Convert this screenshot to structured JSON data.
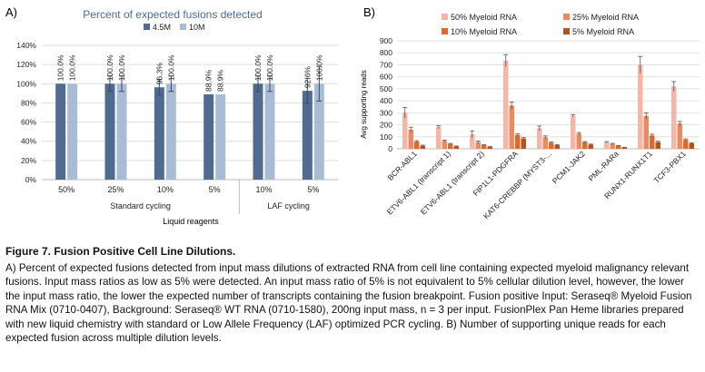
{
  "panels": {
    "a_label": "A)",
    "b_label": "B)"
  },
  "chart_data": [
    {
      "type": "bar",
      "title": "Percent of expected fusions detected",
      "xlabel": "Liquid reagents",
      "ylabel": "",
      "ylim": [
        0,
        140
      ],
      "yticks": [
        "0%",
        "20%",
        "40%",
        "60%",
        "80%",
        "100%",
        "120%",
        "140%"
      ],
      "categories": [
        "50%",
        "25%",
        "10%",
        "5%",
        "10%",
        "5%"
      ],
      "groups": [
        {
          "label": "Standard cycling",
          "categories": [
            "50%",
            "25%",
            "10%",
            "5%"
          ]
        },
        {
          "label": "LAF cycling",
          "categories": [
            "10%",
            "5%"
          ]
        }
      ],
      "series": [
        {
          "name": "4.5M",
          "color": "#4f6b8f",
          "values": [
            100.0,
            100.0,
            96.3,
            88.9,
            100.0,
            92.6
          ],
          "errors": [
            0,
            8,
            8,
            0,
            8,
            13
          ],
          "labels": [
            "100.0%",
            "100.0%",
            "96.3%",
            "88.9%",
            "100.0%",
            "92.6%"
          ]
        },
        {
          "name": "10M",
          "color": "#a9bcd6",
          "values": [
            100.0,
            100.0,
            100.0,
            88.9,
            100.0,
            100.0
          ],
          "errors": [
            0,
            8,
            8,
            0,
            8,
            18
          ],
          "labels": [
            "100.0%",
            "100.0%",
            "100.0%",
            "88.9%",
            "100.0%",
            "100.0%"
          ]
        }
      ],
      "legend_position": "top-center",
      "grid": true
    },
    {
      "type": "bar",
      "title": "",
      "xlabel": "",
      "ylabel": "Avg supporting reads",
      "ylim": [
        0,
        900
      ],
      "yticks": [
        "0",
        "100",
        "200",
        "300",
        "400",
        "500",
        "600",
        "700",
        "800",
        "900"
      ],
      "categories": [
        "BCR-ABL1",
        "ETV6-ABL1 (transcript 1)",
        "ETV6-ABL1 (transcript 2)",
        "FIP1L1-PDGFRA",
        "KAT6-CREBBP (MYST3-...",
        "PCM1-JAK2",
        "PML-RARa",
        "RUNX1-RUNX1T1",
        "TCF3-PBX1"
      ],
      "series": [
        {
          "name": "50% Myeloid RNA",
          "color": "#f4b6a6",
          "values": [
            300,
            180,
            120,
            735,
            170,
            275,
            55,
            700,
            520
          ],
          "errors": [
            45,
            12,
            30,
            50,
            20,
            10,
            5,
            70,
            40
          ]
        },
        {
          "name": "25% Myeloid RNA",
          "color": "#ec8a5f",
          "values": [
            160,
            65,
            55,
            360,
            95,
            125,
            40,
            275,
            210
          ],
          "errors": [
            20,
            8,
            10,
            30,
            12,
            10,
            5,
            25,
            18
          ]
        },
        {
          "name": "10% Myeloid RNA",
          "color": "#e0692a",
          "values": [
            60,
            40,
            30,
            115,
            50,
            55,
            25,
            110,
            75
          ],
          "errors": [
            8,
            5,
            5,
            10,
            6,
            5,
            3,
            12,
            8
          ]
        },
        {
          "name": "5% Myeloid RNA",
          "color": "#b5521f",
          "values": [
            25,
            20,
            15,
            85,
            30,
            35,
            10,
            55,
            45
          ],
          "errors": [
            5,
            3,
            3,
            8,
            5,
            4,
            2,
            8,
            6
          ]
        }
      ],
      "legend_position": "top",
      "grid": true
    }
  ],
  "caption": {
    "title": "Figure 7. Fusion Positive Cell Line Dilutions.",
    "body": "A) Percent of expected fusions detected from input mass dilutions of extracted RNA from cell line containing expected myeloid malignancy relevant fusions. Input mass ratios as low as 5% were detected. An input mass ratio of 5% is not equivalent to 5% cellular dilution level, however, the lower the input mass ratio, the lower the expected number of transcripts containing the fusion breakpoint. Fusion positive Input: Seraseq® Myeloid Fusion RNA Mix (0710-0407), Background: Seraseq® WT RNA (0710-1580), 200ng input mass, n = 3 per input. FusionPlex Pan Heme libraries prepared with new liquid chemistry with standard or Low Allele Frequency (LAF) optimized PCR cycling. B) Number of supporting unique reads for each expected fusion across multiple dilution levels."
  }
}
